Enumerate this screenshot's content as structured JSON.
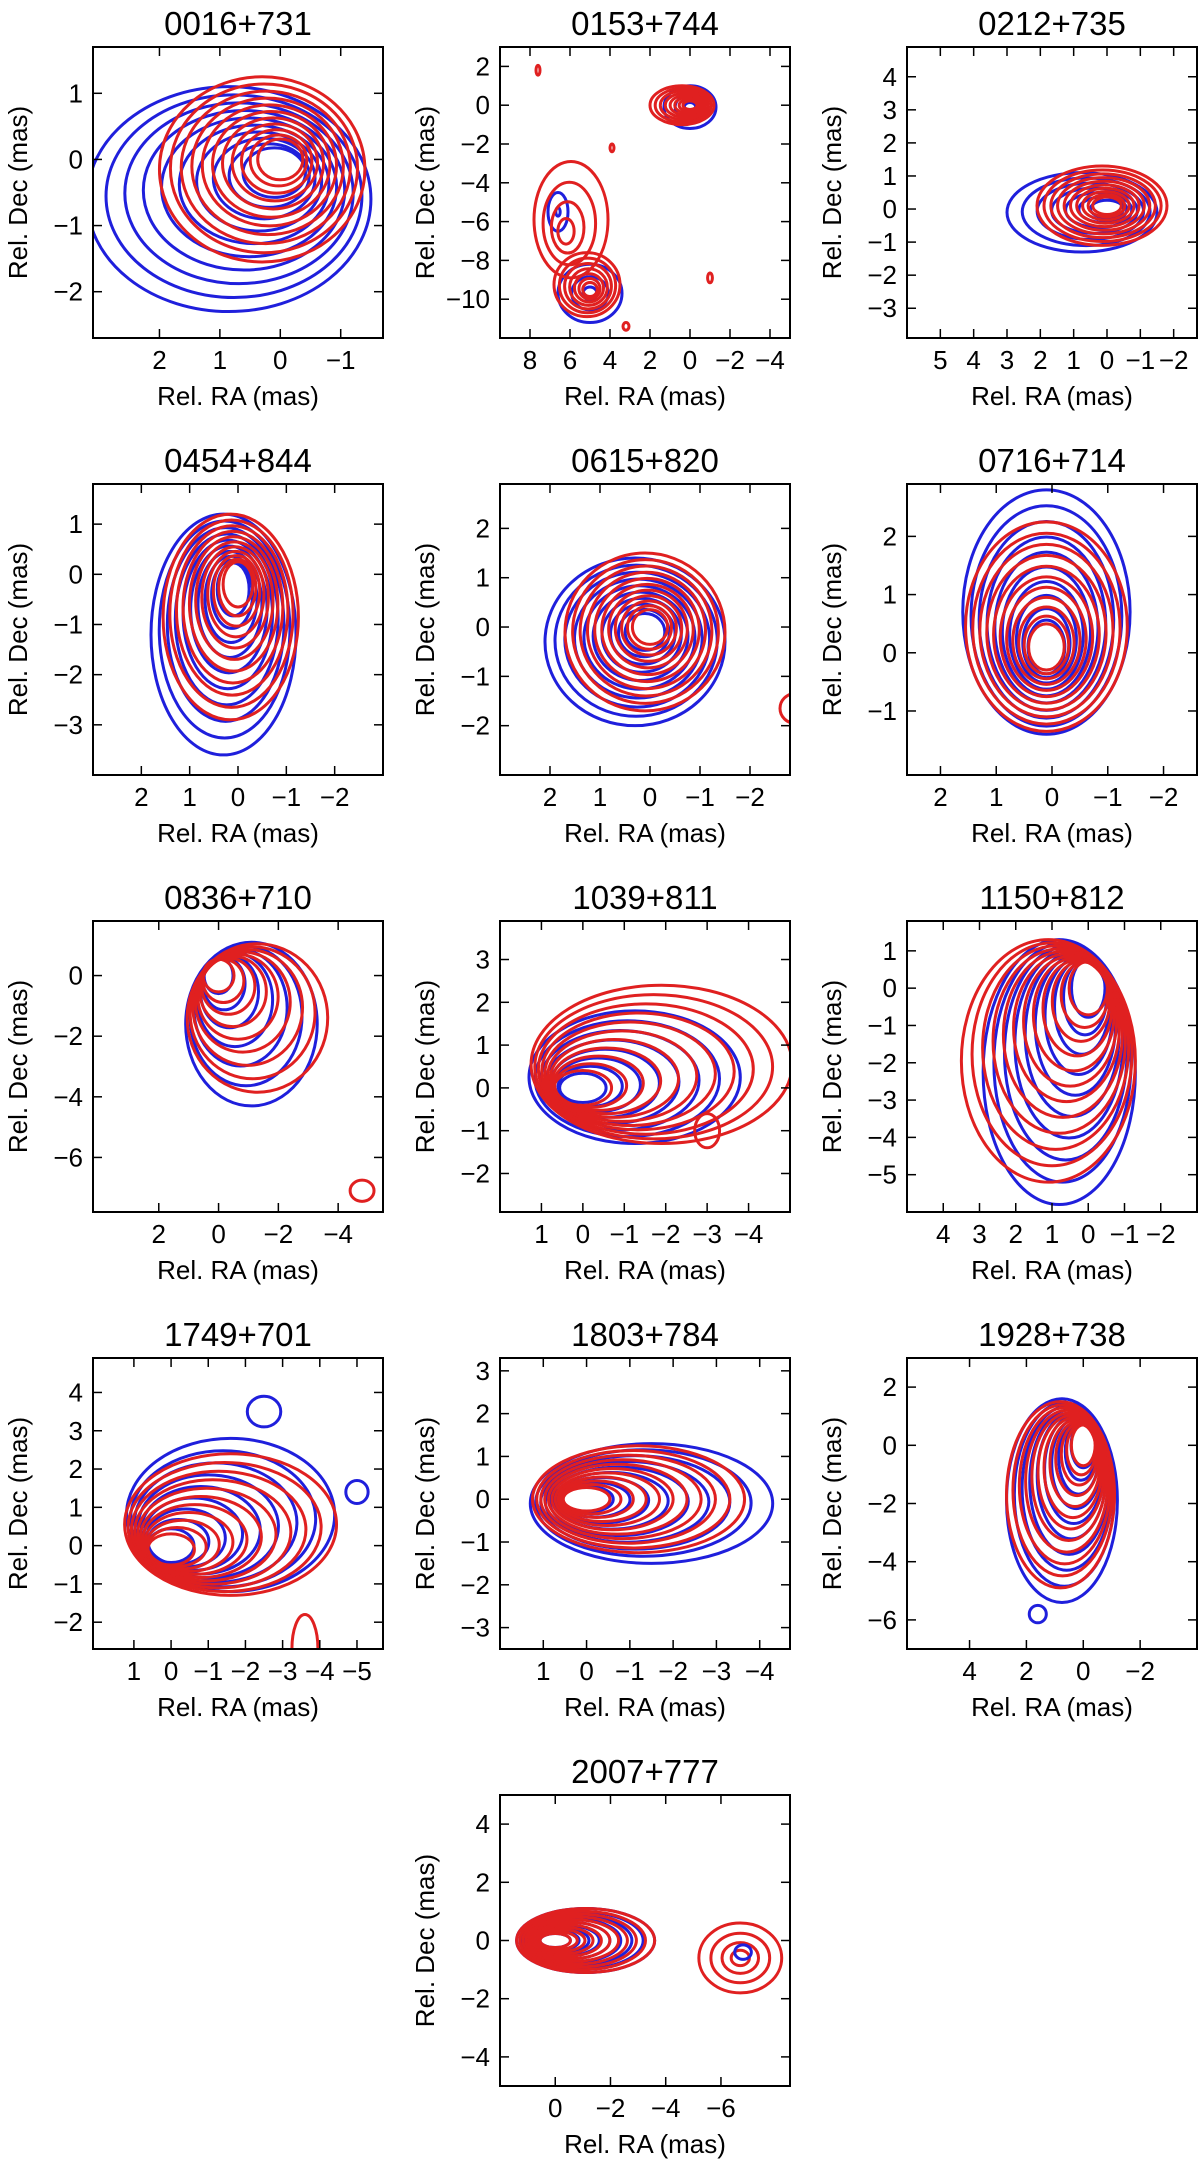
{
  "figure": {
    "xlabel": "Rel. RA (mas)",
    "ylabel": "Rel. Dec (mas)",
    "colors": {
      "series_a": "#1f1fdc",
      "series_b": "#e02020"
    }
  },
  "chart_data": [
    {
      "type": "contour",
      "title": "0016+731",
      "xlabel": "Rel. RA (mas)",
      "ylabel": "Rel. Dec (mas)",
      "xlim": [
        3.1,
        -1.7
      ],
      "ylim": [
        -2.7,
        1.7
      ],
      "xticks": [
        2,
        1,
        0,
        -1
      ],
      "yticks": [
        -2,
        -1,
        0,
        1
      ],
      "sources": [
        {
          "series": "blue",
          "x": 0.1,
          "y": -0.2,
          "rx": 1.6,
          "ry": 1.3,
          "skew_x": 1.5,
          "skew_y": -0.8,
          "n": 10
        },
        {
          "series": "red",
          "x": 0,
          "y": 0,
          "rx": 1.4,
          "ry": 1.25,
          "skew_x": 0.6,
          "skew_y": -0.3,
          "n": 11
        }
      ]
    },
    {
      "type": "contour",
      "title": "0153+744",
      "xlabel": "Rel. RA (mas)",
      "ylabel": "Rel. Dec (mas)",
      "xlim": [
        9.5,
        -5
      ],
      "ylim": [
        -12,
        3
      ],
      "xticks": [
        8,
        6,
        4,
        2,
        0,
        -2,
        -4
      ],
      "yticks": [
        -10,
        -8,
        -6,
        -4,
        -2,
        0,
        2
      ],
      "sources": [
        {
          "series": "blue",
          "x": 0,
          "y": -0.1,
          "rx": 1.3,
          "ry": 1.1,
          "skew_x": 0,
          "skew_y": 0,
          "n": 3
        },
        {
          "series": "red",
          "x": 0,
          "y": 0,
          "rx": 1.2,
          "ry": 1.0,
          "skew_x": 0.8,
          "skew_y": 0,
          "n": 8
        },
        {
          "series": "blue",
          "x": 5,
          "y": -9.7,
          "rx": 1.6,
          "ry": 1.5,
          "skew_x": 0,
          "skew_y": 0,
          "n": 3
        },
        {
          "series": "red",
          "x": 5,
          "y": -9.5,
          "rx": 1.5,
          "ry": 1.4,
          "skew_x": 0.3,
          "skew_y": 0.5,
          "n": 7
        },
        {
          "series": "blue",
          "x": 6.6,
          "y": -5.5,
          "rx": 0.5,
          "ry": 1.0,
          "skew_x": 0,
          "skew_y": 0,
          "n": 2
        },
        {
          "series": "red",
          "x": 6.2,
          "y": -6.5,
          "rx": 1.6,
          "ry": 2.4,
          "skew_x": -0.5,
          "skew_y": 1.2,
          "n": 4
        },
        {
          "series": "red",
          "x": -1,
          "y": -8.9,
          "rx": 0.12,
          "ry": 0.25,
          "skew_x": 0,
          "skew_y": 0,
          "n": 1
        },
        {
          "series": "red",
          "x": 3.2,
          "y": -11.4,
          "rx": 0.15,
          "ry": 0.2,
          "skew_x": 0,
          "skew_y": 0,
          "n": 1
        },
        {
          "series": "red",
          "x": 7.6,
          "y": 1.8,
          "rx": 0.1,
          "ry": 0.25,
          "skew_x": 0,
          "skew_y": 0,
          "n": 1
        },
        {
          "series": "red",
          "x": 3.9,
          "y": -2.2,
          "rx": 0.1,
          "ry": 0.2,
          "skew_x": 0,
          "skew_y": 0,
          "n": 1
        }
      ]
    },
    {
      "type": "contour",
      "title": "0212+735",
      "xlabel": "Rel. RA (mas)",
      "ylabel": "Rel. Dec (mas)",
      "xlim": [
        6,
        -2.7
      ],
      "ylim": [
        -3.9,
        4.9
      ],
      "xticks": [
        5,
        4,
        3,
        2,
        1,
        0,
        -1,
        -2
      ],
      "yticks": [
        -3,
        -2,
        -1,
        0,
        1,
        2,
        3,
        4
      ],
      "sources": [
        {
          "series": "blue",
          "x": 0,
          "y": 0,
          "rx": 1.5,
          "ry": 1.1,
          "skew_x": 1.5,
          "skew_y": -0.2,
          "n": 7
        },
        {
          "series": "red",
          "x": 0,
          "y": 0.1,
          "rx": 1.8,
          "ry": 1.2,
          "skew_x": 0.3,
          "skew_y": 0,
          "n": 10
        }
      ]
    },
    {
      "type": "contour",
      "title": "0454+844",
      "xlabel": "Rel. RA (mas)",
      "ylabel": "Rel. Dec (mas)",
      "xlim": [
        3,
        -3
      ],
      "ylim": [
        -4,
        1.8
      ],
      "xticks": [
        2,
        1,
        0,
        -1,
        -2
      ],
      "yticks": [
        -3,
        -2,
        -1,
        0,
        1
      ],
      "sources": [
        {
          "series": "blue",
          "x": 0.1,
          "y": -0.3,
          "rx": 1.3,
          "ry": 1.5,
          "skew_x": 0.4,
          "skew_y": -1.8,
          "n": 10
        },
        {
          "series": "red",
          "x": 0,
          "y": -0.2,
          "rx": 1.25,
          "ry": 1.4,
          "skew_x": 0.3,
          "skew_y": -1.3,
          "n": 11
        }
      ]
    },
    {
      "type": "contour",
      "title": "0615+820",
      "xlabel": "Rel. RA (mas)",
      "ylabel": "Rel. Dec (mas)",
      "xlim": [
        3,
        -2.8
      ],
      "ylim": [
        -3,
        2.9
      ],
      "xticks": [
        2,
        1,
        0,
        -1,
        -2
      ],
      "yticks": [
        -2,
        -1,
        0,
        1,
        2
      ],
      "sources": [
        {
          "series": "blue",
          "x": 0.1,
          "y": -0.1,
          "rx": 1.6,
          "ry": 1.5,
          "skew_x": 0.4,
          "skew_y": -0.4,
          "n": 10
        },
        {
          "series": "red",
          "x": 0,
          "y": 0,
          "rx": 1.5,
          "ry": 1.5,
          "skew_x": 0.2,
          "skew_y": -0.2,
          "n": 11
        },
        {
          "series": "red",
          "x": -2.9,
          "y": -1.65,
          "rx": 0.3,
          "ry": 0.3,
          "skew_x": 0,
          "skew_y": 0,
          "n": 1
        }
      ]
    },
    {
      "type": "contour",
      "title": "0716+714",
      "xlabel": "Rel. RA (mas)",
      "ylabel": "Rel. Dec (mas)",
      "xlim": [
        2.6,
        -2.6
      ],
      "ylim": [
        -2.1,
        2.9
      ],
      "xticks": [
        2,
        1,
        0,
        -1,
        -2
      ],
      "yticks": [
        -1,
        0,
        1,
        2
      ],
      "sources": [
        {
          "series": "blue",
          "x": 0.1,
          "y": 0.1,
          "rx": 1.5,
          "ry": 1.5,
          "skew_x": 0,
          "skew_y": 1.2,
          "n": 10
        },
        {
          "series": "red",
          "x": 0.1,
          "y": 0.1,
          "rx": 1.45,
          "ry": 1.45,
          "skew_x": 0,
          "skew_y": 0.7,
          "n": 11
        }
      ]
    },
    {
      "type": "contour",
      "title": "0836+710",
      "xlabel": "Rel. RA (mas)",
      "ylabel": "Rel. Dec (mas)",
      "xlim": [
        4.2,
        -5.5
      ],
      "ylim": [
        -7.8,
        1.8
      ],
      "xticks": [
        2,
        0,
        -2,
        -4
      ],
      "yticks": [
        -6,
        -4,
        -2,
        0
      ],
      "sources": [
        {
          "series": "blue",
          "x": 0,
          "y": 0,
          "rx": 1.1,
          "ry": 1.1,
          "skew_x": -2.2,
          "skew_y": -3.2,
          "n": 7
        },
        {
          "series": "red",
          "x": 0,
          "y": 0,
          "rx": 1.05,
          "ry": 1.05,
          "skew_x": -2.6,
          "skew_y": -2.8,
          "n": 9
        },
        {
          "series": "red",
          "x": -4.8,
          "y": -7.1,
          "rx": 0.4,
          "ry": 0.35,
          "skew_x": 0,
          "skew_y": 0,
          "n": 1
        }
      ]
    },
    {
      "type": "contour",
      "title": "1039+811",
      "xlabel": "Rel. RA (mas)",
      "ylabel": "Rel. Dec (mas)",
      "xlim": [
        2,
        -5
      ],
      "ylim": [
        -2.9,
        3.9
      ],
      "xticks": [
        1,
        0,
        -1,
        -2,
        -3,
        -4
      ],
      "yticks": [
        -2,
        -1,
        0,
        1,
        2,
        3
      ],
      "sources": [
        {
          "series": "blue",
          "x": 0,
          "y": 0,
          "rx": 1.3,
          "ry": 1.3,
          "skew_x": -2.5,
          "skew_y": 0.5,
          "n": 8
        },
        {
          "series": "red",
          "x": 0,
          "y": 0,
          "rx": 1.25,
          "ry": 1.3,
          "skew_x": -3.8,
          "skew_y": 1.1,
          "n": 11
        },
        {
          "series": "red",
          "x": -3,
          "y": -1,
          "rx": 0.3,
          "ry": 0.4,
          "skew_x": 0,
          "skew_y": 0,
          "n": 1
        }
      ]
    },
    {
      "type": "contour",
      "title": "1150+812",
      "xlabel": "Rel. RA (mas)",
      "ylabel": "Rel. Dec (mas)",
      "xlim": [
        5,
        -3
      ],
      "ylim": [
        -6,
        1.8
      ],
      "xticks": [
        4,
        3,
        2,
        1,
        0,
        -1,
        -2
      ],
      "yticks": [
        -5,
        -4,
        -3,
        -2,
        -1,
        0,
        1
      ],
      "sources": [
        {
          "series": "blue",
          "x": 0,
          "y": 0,
          "rx": 1.3,
          "ry": 1.3,
          "skew_x": 1.6,
          "skew_y": -4.5,
          "n": 10
        },
        {
          "series": "red",
          "x": 0,
          "y": 0,
          "rx": 1.3,
          "ry": 1.3,
          "skew_x": 2.2,
          "skew_y": -3.9,
          "n": 12
        }
      ]
    },
    {
      "type": "contour",
      "title": "1749+701",
      "xlabel": "Rel. RA (mas)",
      "ylabel": "Rel. Dec (mas)",
      "xlim": [
        2.1,
        -5.7
      ],
      "ylim": [
        -2.7,
        4.9
      ],
      "xticks": [
        1,
        0,
        -1,
        -2,
        -3,
        -4,
        -5
      ],
      "yticks": [
        -2,
        -1,
        0,
        1,
        2,
        3,
        4
      ],
      "sources": [
        {
          "series": "blue",
          "x": 0,
          "y": 0,
          "rx": 1.2,
          "ry": 1.2,
          "skew_x": -3.2,
          "skew_y": 1.6,
          "n": 9
        },
        {
          "series": "red",
          "x": 0,
          "y": -0.1,
          "rx": 1.25,
          "ry": 1.2,
          "skew_x": -3.2,
          "skew_y": 1.3,
          "n": 11
        },
        {
          "series": "blue",
          "x": -2.5,
          "y": 3.5,
          "rx": 0.45,
          "ry": 0.4,
          "skew_x": 0,
          "skew_y": 0,
          "n": 1
        },
        {
          "series": "blue",
          "x": -5,
          "y": 1.4,
          "rx": 0.3,
          "ry": 0.3,
          "skew_x": 0,
          "skew_y": 0,
          "n": 1
        },
        {
          "series": "red",
          "x": -3.6,
          "y": -2.7,
          "rx": 0.35,
          "ry": 0.9,
          "skew_x": 0,
          "skew_y": 0,
          "n": 1
        }
      ]
    },
    {
      "type": "contour",
      "title": "1803+784",
      "xlabel": "Rel. RA (mas)",
      "ylabel": "Rel. Dec (mas)",
      "xlim": [
        2,
        -4.7
      ],
      "ylim": [
        -3.5,
        3.3
      ],
      "xticks": [
        1,
        0,
        -1,
        -2,
        -3,
        -4
      ],
      "yticks": [
        -3,
        -2,
        -1,
        0,
        1,
        2,
        3
      ],
      "sources": [
        {
          "series": "blue",
          "x": 0,
          "y": 0,
          "rx": 1.3,
          "ry": 1.3,
          "skew_x": -3,
          "skew_y": -0.2,
          "n": 9
        },
        {
          "series": "red",
          "x": 0,
          "y": 0,
          "rx": 1.25,
          "ry": 1.25,
          "skew_x": -2.4,
          "skew_y": 0,
          "n": 11
        }
      ]
    },
    {
      "type": "contour",
      "title": "1928+738",
      "xlabel": "Rel. RA (mas)",
      "ylabel": "Rel. Dec (mas)",
      "xlim": [
        6.2,
        -4
      ],
      "ylim": [
        -7,
        3
      ],
      "xticks": [
        4,
        2,
        0,
        -2
      ],
      "yticks": [
        -6,
        -4,
        -2,
        0,
        2
      ],
      "sources": [
        {
          "series": "blue",
          "x": 0,
          "y": 0,
          "rx": 1.2,
          "ry": 1.6,
          "skew_x": 1.5,
          "skew_y": -3.8,
          "n": 10
        },
        {
          "series": "red",
          "x": 0,
          "y": 0,
          "rx": 1.1,
          "ry": 1.5,
          "skew_x": 1.6,
          "skew_y": -3.4,
          "n": 12
        },
        {
          "series": "blue",
          "x": 1.6,
          "y": -5.8,
          "rx": 0.3,
          "ry": 0.3,
          "skew_x": 0,
          "skew_y": 0,
          "n": 1
        }
      ]
    },
    {
      "type": "contour",
      "title": "2007+777",
      "xlabel": "Rel. RA (mas)",
      "ylabel": "Rel. Dec (mas)",
      "xlim": [
        2,
        -8.5
      ],
      "ylim": [
        -5,
        5
      ],
      "xticks": [
        0,
        -2,
        -4,
        -6
      ],
      "yticks": [
        -4,
        -2,
        0,
        2,
        4
      ],
      "sources": [
        {
          "series": "blue",
          "x": 0,
          "y": 0,
          "rx": 1.4,
          "ry": 1.1,
          "skew_x": -2.2,
          "skew_y": 0,
          "n": 9
        },
        {
          "series": "red",
          "x": 0,
          "y": 0,
          "rx": 1.4,
          "ry": 1.1,
          "skew_x": -2.2,
          "skew_y": 0,
          "n": 11
        },
        {
          "series": "red",
          "x": -6.7,
          "y": -0.6,
          "rx": 1.5,
          "ry": 1.2,
          "skew_x": 0,
          "skew_y": 0,
          "n": 4
        },
        {
          "series": "blue",
          "x": -6.8,
          "y": -0.4,
          "rx": 0.3,
          "ry": 0.25,
          "skew_x": 0,
          "skew_y": 0,
          "n": 1
        }
      ]
    }
  ]
}
